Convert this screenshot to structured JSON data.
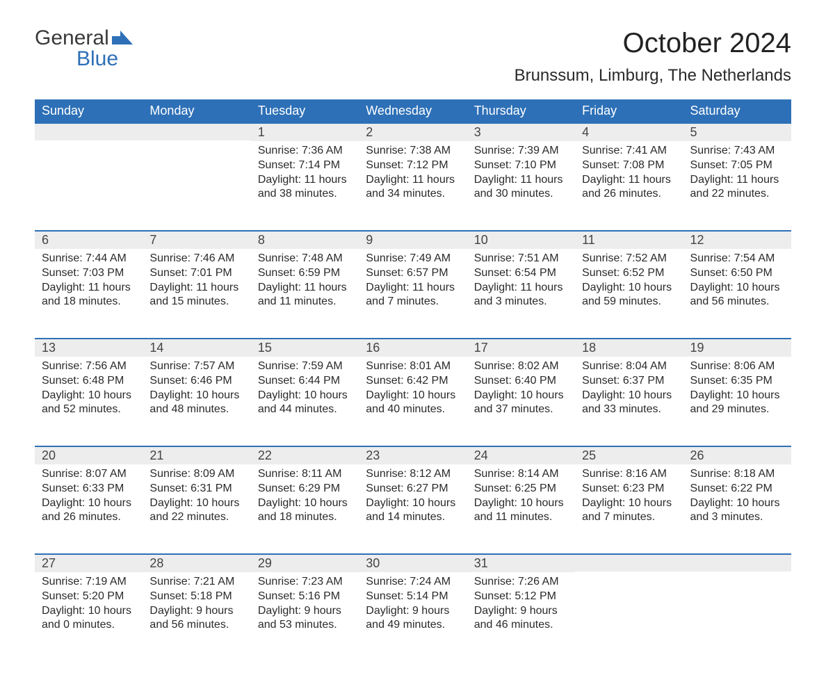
{
  "logo": {
    "line1": "General",
    "line2": "Blue"
  },
  "title": "October 2024",
  "location": "Brunssum, Limburg, The Netherlands",
  "colors": {
    "header_bg": "#2d70b7",
    "header_text": "#ffffff",
    "daynum_bg": "#ededed",
    "border_accent": "#2d70b7",
    "body_text": "#2a2a2a"
  },
  "weekdays": [
    "Sunday",
    "Monday",
    "Tuesday",
    "Wednesday",
    "Thursday",
    "Friday",
    "Saturday"
  ],
  "weeks": [
    [
      null,
      null,
      {
        "n": "1",
        "sr": "Sunrise: 7:36 AM",
        "ss": "Sunset: 7:14 PM",
        "d1": "Daylight: 11 hours",
        "d2": "and 38 minutes."
      },
      {
        "n": "2",
        "sr": "Sunrise: 7:38 AM",
        "ss": "Sunset: 7:12 PM",
        "d1": "Daylight: 11 hours",
        "d2": "and 34 minutes."
      },
      {
        "n": "3",
        "sr": "Sunrise: 7:39 AM",
        "ss": "Sunset: 7:10 PM",
        "d1": "Daylight: 11 hours",
        "d2": "and 30 minutes."
      },
      {
        "n": "4",
        "sr": "Sunrise: 7:41 AM",
        "ss": "Sunset: 7:08 PM",
        "d1": "Daylight: 11 hours",
        "d2": "and 26 minutes."
      },
      {
        "n": "5",
        "sr": "Sunrise: 7:43 AM",
        "ss": "Sunset: 7:05 PM",
        "d1": "Daylight: 11 hours",
        "d2": "and 22 minutes."
      }
    ],
    [
      {
        "n": "6",
        "sr": "Sunrise: 7:44 AM",
        "ss": "Sunset: 7:03 PM",
        "d1": "Daylight: 11 hours",
        "d2": "and 18 minutes."
      },
      {
        "n": "7",
        "sr": "Sunrise: 7:46 AM",
        "ss": "Sunset: 7:01 PM",
        "d1": "Daylight: 11 hours",
        "d2": "and 15 minutes."
      },
      {
        "n": "8",
        "sr": "Sunrise: 7:48 AM",
        "ss": "Sunset: 6:59 PM",
        "d1": "Daylight: 11 hours",
        "d2": "and 11 minutes."
      },
      {
        "n": "9",
        "sr": "Sunrise: 7:49 AM",
        "ss": "Sunset: 6:57 PM",
        "d1": "Daylight: 11 hours",
        "d2": "and 7 minutes."
      },
      {
        "n": "10",
        "sr": "Sunrise: 7:51 AM",
        "ss": "Sunset: 6:54 PM",
        "d1": "Daylight: 11 hours",
        "d2": "and 3 minutes."
      },
      {
        "n": "11",
        "sr": "Sunrise: 7:52 AM",
        "ss": "Sunset: 6:52 PM",
        "d1": "Daylight: 10 hours",
        "d2": "and 59 minutes."
      },
      {
        "n": "12",
        "sr": "Sunrise: 7:54 AM",
        "ss": "Sunset: 6:50 PM",
        "d1": "Daylight: 10 hours",
        "d2": "and 56 minutes."
      }
    ],
    [
      {
        "n": "13",
        "sr": "Sunrise: 7:56 AM",
        "ss": "Sunset: 6:48 PM",
        "d1": "Daylight: 10 hours",
        "d2": "and 52 minutes."
      },
      {
        "n": "14",
        "sr": "Sunrise: 7:57 AM",
        "ss": "Sunset: 6:46 PM",
        "d1": "Daylight: 10 hours",
        "d2": "and 48 minutes."
      },
      {
        "n": "15",
        "sr": "Sunrise: 7:59 AM",
        "ss": "Sunset: 6:44 PM",
        "d1": "Daylight: 10 hours",
        "d2": "and 44 minutes."
      },
      {
        "n": "16",
        "sr": "Sunrise: 8:01 AM",
        "ss": "Sunset: 6:42 PM",
        "d1": "Daylight: 10 hours",
        "d2": "and 40 minutes."
      },
      {
        "n": "17",
        "sr": "Sunrise: 8:02 AM",
        "ss": "Sunset: 6:40 PM",
        "d1": "Daylight: 10 hours",
        "d2": "and 37 minutes."
      },
      {
        "n": "18",
        "sr": "Sunrise: 8:04 AM",
        "ss": "Sunset: 6:37 PM",
        "d1": "Daylight: 10 hours",
        "d2": "and 33 minutes."
      },
      {
        "n": "19",
        "sr": "Sunrise: 8:06 AM",
        "ss": "Sunset: 6:35 PM",
        "d1": "Daylight: 10 hours",
        "d2": "and 29 minutes."
      }
    ],
    [
      {
        "n": "20",
        "sr": "Sunrise: 8:07 AM",
        "ss": "Sunset: 6:33 PM",
        "d1": "Daylight: 10 hours",
        "d2": "and 26 minutes."
      },
      {
        "n": "21",
        "sr": "Sunrise: 8:09 AM",
        "ss": "Sunset: 6:31 PM",
        "d1": "Daylight: 10 hours",
        "d2": "and 22 minutes."
      },
      {
        "n": "22",
        "sr": "Sunrise: 8:11 AM",
        "ss": "Sunset: 6:29 PM",
        "d1": "Daylight: 10 hours",
        "d2": "and 18 minutes."
      },
      {
        "n": "23",
        "sr": "Sunrise: 8:12 AM",
        "ss": "Sunset: 6:27 PM",
        "d1": "Daylight: 10 hours",
        "d2": "and 14 minutes."
      },
      {
        "n": "24",
        "sr": "Sunrise: 8:14 AM",
        "ss": "Sunset: 6:25 PM",
        "d1": "Daylight: 10 hours",
        "d2": "and 11 minutes."
      },
      {
        "n": "25",
        "sr": "Sunrise: 8:16 AM",
        "ss": "Sunset: 6:23 PM",
        "d1": "Daylight: 10 hours",
        "d2": "and 7 minutes."
      },
      {
        "n": "26",
        "sr": "Sunrise: 8:18 AM",
        "ss": "Sunset: 6:22 PM",
        "d1": "Daylight: 10 hours",
        "d2": "and 3 minutes."
      }
    ],
    [
      {
        "n": "27",
        "sr": "Sunrise: 7:19 AM",
        "ss": "Sunset: 5:20 PM",
        "d1": "Daylight: 10 hours",
        "d2": "and 0 minutes."
      },
      {
        "n": "28",
        "sr": "Sunrise: 7:21 AM",
        "ss": "Sunset: 5:18 PM",
        "d1": "Daylight: 9 hours",
        "d2": "and 56 minutes."
      },
      {
        "n": "29",
        "sr": "Sunrise: 7:23 AM",
        "ss": "Sunset: 5:16 PM",
        "d1": "Daylight: 9 hours",
        "d2": "and 53 minutes."
      },
      {
        "n": "30",
        "sr": "Sunrise: 7:24 AM",
        "ss": "Sunset: 5:14 PM",
        "d1": "Daylight: 9 hours",
        "d2": "and 49 minutes."
      },
      {
        "n": "31",
        "sr": "Sunrise: 7:26 AM",
        "ss": "Sunset: 5:12 PM",
        "d1": "Daylight: 9 hours",
        "d2": "and 46 minutes."
      },
      null,
      null
    ]
  ]
}
